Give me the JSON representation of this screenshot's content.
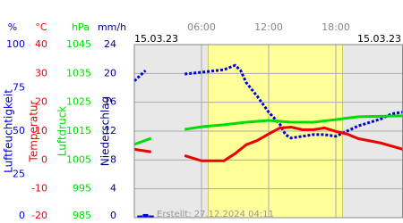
{
  "chart_data": {
    "type": "line",
    "date_left": "15.03.23",
    "date_right": "15.03.23",
    "note": "Erstellt: 27.12.2024 04:11",
    "xlim": [
      0,
      24
    ],
    "xticks": [
      {
        "value": 6,
        "label": "06:00"
      },
      {
        "value": 12,
        "label": "12:00"
      },
      {
        "value": 18,
        "label": "18:00"
      }
    ],
    "daylight": [
      6.6,
      18.6
    ],
    "grid": true,
    "axes": [
      {
        "name": "Luftfeuchtigkeit",
        "unit": "%",
        "color": "#0000dd",
        "ylim": [
          0,
          100
        ],
        "yticks": [
          0,
          25,
          50,
          75,
          100
        ]
      },
      {
        "name": "Temperatur",
        "unit": "°C",
        "color": "#ee0000",
        "ylim": [
          -20,
          40
        ],
        "yticks": [
          -20,
          -10,
          0,
          10,
          20,
          30,
          40
        ]
      },
      {
        "name": "Luftdruck",
        "unit": "hPa",
        "color": "#00dd00",
        "ylim": [
          985,
          1045
        ],
        "yticks": [
          985,
          995,
          1005,
          1015,
          1025,
          1035,
          1045
        ]
      },
      {
        "name": "Niederschlag",
        "unit": "mm/h",
        "color": "#000088",
        "ylim": [
          0,
          24
        ],
        "yticks": [
          0,
          4,
          8,
          12,
          16,
          20,
          24
        ]
      }
    ],
    "series": [
      {
        "axis": 0,
        "style": "dots",
        "color": "#0000dd",
        "x": [
          0,
          1,
          1.5,
          4.5,
          6,
          8,
          9,
          9.5,
          10,
          11,
          12,
          13,
          13.5,
          14,
          15,
          16,
          17,
          18,
          19,
          20,
          21,
          22,
          23,
          24
        ],
        "values": [
          79,
          85,
          null,
          83,
          84,
          85.5,
          88,
          85,
          78,
          70,
          61,
          54,
          48,
          46,
          47,
          48,
          48,
          47,
          50,
          53,
          55,
          57,
          60,
          61
        ]
      },
      {
        "axis": 1,
        "style": "line",
        "color": "#ee0000",
        "x": [
          0,
          1.5,
          3,
          4.5,
          6,
          8,
          9,
          10,
          11,
          12,
          13,
          14,
          15,
          16,
          17,
          18,
          19,
          20,
          22,
          24
        ],
        "values": [
          3.7,
          2.8,
          null,
          1.5,
          -0.3,
          -0.3,
          2.2,
          5.3,
          6.8,
          9,
          11.1,
          11.4,
          10.5,
          10.5,
          11.1,
          9.9,
          9,
          7.4,
          5.9,
          3.7
        ]
      },
      {
        "axis": 2,
        "style": "line",
        "color": "#00dd00",
        "x": [
          0,
          1.5,
          3,
          4.5,
          6,
          8,
          10,
          12,
          14,
          16,
          18,
          20,
          24
        ],
        "values": [
          1010.4,
          1012.5,
          null,
          1015.6,
          1016.5,
          1017.2,
          1018.1,
          1018.7,
          1018.1,
          1018.1,
          1019,
          1020,
          1020.3
        ]
      },
      {
        "axis": 3,
        "style": "bars",
        "color": "#0000dd",
        "x": [
          0.5,
          1,
          1.5
        ],
        "values": [
          0.3,
          0.5,
          0.3
        ]
      }
    ]
  }
}
